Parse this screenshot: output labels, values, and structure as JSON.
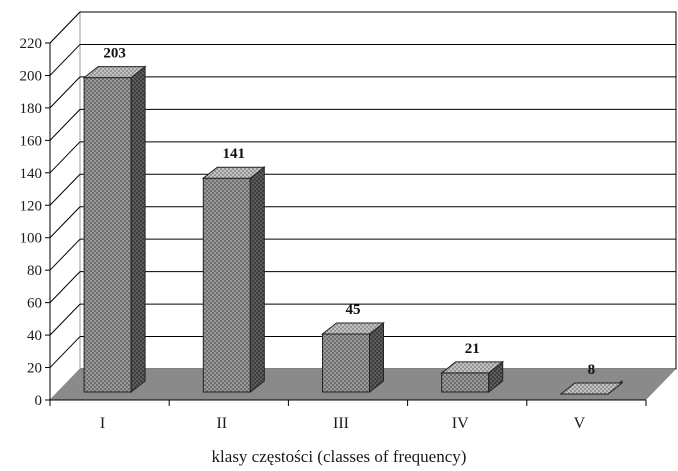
{
  "chart_data": {
    "type": "bar",
    "style": "3d-column",
    "categories": [
      "I",
      "II",
      "III",
      "IV",
      "V"
    ],
    "values": [
      203,
      141,
      45,
      21,
      8
    ],
    "data_labels": [
      "203",
      "141",
      "45",
      "21",
      "8"
    ],
    "xlabel": "klasy częstości (classes of frequency)",
    "ylabel": "",
    "ylim": [
      0,
      220
    ],
    "yticks": [
      0,
      20,
      40,
      60,
      80,
      100,
      120,
      140,
      160,
      180,
      200,
      220
    ],
    "grid": true,
    "legend": "none",
    "colors": {
      "bar_front": "#8f8f8f",
      "bar_side": "#5a5a5a",
      "bar_top": "#b5b5b5",
      "floor": "#8a8a8a",
      "grid": "#000000"
    }
  }
}
